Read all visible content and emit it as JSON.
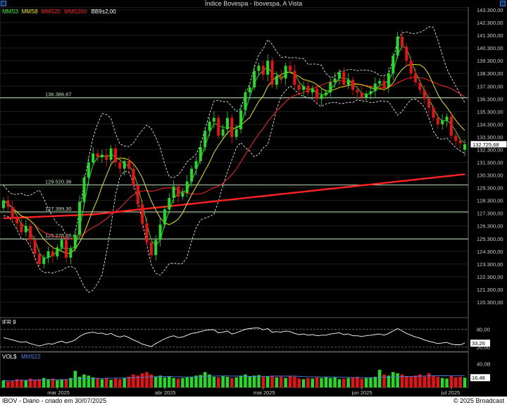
{
  "window": {
    "title": "Índice Bovespa - Ibovespa, A Vista"
  },
  "footer": {
    "left": "IBOV - Diário - criado em 30/07/2025",
    "right": "© 2025 Broadcast"
  },
  "colors": {
    "up": "#22dd22",
    "down": "#ee1111",
    "mms3": "#33ee33",
    "mms8": "#e8e800",
    "mms20": "#ff2222",
    "mms200": "#ff2222",
    "bb": "#ffffff",
    "grid": "#1e1e1e"
  },
  "chart_data": [
    {
      "type": "candlestick",
      "legend": [
        {
          "label": "MMS3",
          "color": "#33ee33"
        },
        {
          "label": "MMS8",
          "color": "#e8e800"
        },
        {
          "label": "MMS20",
          "color": "#ff2222"
        },
        {
          "label": "MMS200",
          "color": "#ff2222"
        },
        {
          "label": "BB9±2,00",
          "color": "#ffffff"
        }
      ],
      "ylim": [
        119300,
        143300
      ],
      "yticks": [
        "120.300,00",
        "121.300,00",
        "122.300,00",
        "123.300,00",
        "124.300,00",
        "125.300,00",
        "126.300,00",
        "127.300,00",
        "128.300,00",
        "129.300,00",
        "130.300,00",
        "131.300,00",
        "132.300,00",
        "133.300,00",
        "134.300,00",
        "135.300,00",
        "136.300,00",
        "137.300,00",
        "138.300,00",
        "139.300,00",
        "140.300,00",
        "141.300,00",
        "142.300,00",
        "143.300,00"
      ],
      "last_price": 132725.68,
      "last_price_label": "132.725,68",
      "hlines": [
        {
          "value": 136386.67,
          "label": "136.386,67"
        },
        {
          "value": 129520.36,
          "label": "129.520,36"
        },
        {
          "value": 127399.3,
          "label": "127.399,30"
        },
        {
          "value": 125275.65,
          "label": "125.275,65"
        }
      ],
      "months": [
        {
          "index": 12,
          "label": "mar 2025"
        },
        {
          "index": 36,
          "label": "abr 2025"
        },
        {
          "index": 58,
          "label": "mai 2025"
        },
        {
          "index": 80,
          "label": "jun 2025"
        },
        {
          "index": 100,
          "label": "jul 2025"
        }
      ],
      "closes": [
        128300,
        127800,
        127000,
        126500,
        125800,
        126300,
        125200,
        124100,
        123300,
        123800,
        124300,
        123900,
        124600,
        125200,
        123800,
        124500,
        125600,
        128200,
        130100,
        131300,
        132000,
        131700,
        131900,
        131500,
        132400,
        131300,
        130800,
        131400,
        130800,
        129500,
        128000,
        126500,
        125000,
        124000,
        125200,
        126400,
        127600,
        128500,
        129400,
        128600,
        128900,
        129800,
        130800,
        131400,
        132500,
        133800,
        134500,
        134800,
        133400,
        133900,
        134800,
        133300,
        133900,
        135400,
        136800,
        137200,
        138500,
        138900,
        138200,
        139300,
        137400,
        138100,
        137900,
        138900,
        138500,
        137400,
        137000,
        137300,
        136800,
        137100,
        136300,
        136600,
        136800,
        137600,
        137900,
        138400,
        137400,
        137800,
        137000,
        136800,
        136400,
        136700,
        136900,
        137500,
        137700,
        137200,
        138300,
        139700,
        141200,
        140400,
        139300,
        138300,
        137600,
        137000,
        136300,
        135600,
        134800,
        134300,
        134600,
        134900,
        133400,
        133000,
        132800,
        132725.68
      ],
      "opens": [
        127700,
        128300,
        127800,
        127000,
        126500,
        125800,
        126300,
        125200,
        124100,
        123300,
        123800,
        124300,
        123900,
        124600,
        125200,
        123800,
        124500,
        125600,
        128200,
        130100,
        131300,
        132000,
        131700,
        131900,
        131500,
        132400,
        131300,
        130800,
        131400,
        130800,
        129500,
        128000,
        126500,
        125000,
        124000,
        125200,
        126400,
        127600,
        128500,
        129400,
        128600,
        128900,
        129800,
        130800,
        131400,
        132500,
        133800,
        134500,
        134800,
        133400,
        133900,
        134800,
        133300,
        133900,
        135400,
        136800,
        137200,
        138500,
        138900,
        138200,
        139300,
        137400,
        138100,
        137900,
        138900,
        138500,
        137400,
        137000,
        137300,
        136800,
        137100,
        136300,
        136600,
        136800,
        137600,
        137900,
        138400,
        137400,
        137800,
        137000,
        136800,
        136400,
        136700,
        136900,
        137500,
        137700,
        137200,
        138300,
        139700,
        141200,
        140400,
        139300,
        138300,
        137600,
        137000,
        136300,
        135600,
        134800,
        134300,
        134600,
        134900,
        133400,
        133000,
        132300
      ]
    },
    {
      "type": "line",
      "title": "IFR 9",
      "ylim": [
        15,
        95
      ],
      "yticks": [
        "80,00",
        "20,00"
      ],
      "last_value_label": "33,26",
      "values": [
        52,
        48,
        44,
        40,
        36,
        38,
        32,
        28,
        24,
        28,
        32,
        30,
        36,
        40,
        34,
        38,
        44,
        56,
        64,
        68,
        70,
        66,
        67,
        62,
        66,
        58,
        54,
        58,
        52,
        44,
        38,
        30,
        26,
        22,
        32,
        40,
        48,
        54,
        58,
        52,
        54,
        60,
        66,
        68,
        72,
        76,
        78,
        78,
        68,
        70,
        74,
        64,
        68,
        74,
        80,
        82,
        84,
        84,
        78,
        82,
        70,
        72,
        70,
        74,
        72,
        66,
        62,
        64,
        60,
        62,
        58,
        60,
        60,
        64,
        66,
        68,
        62,
        64,
        58,
        58,
        56,
        58,
        60,
        62,
        64,
        60,
        66,
        74,
        82,
        74,
        66,
        60,
        54,
        50,
        44,
        40,
        36,
        32,
        34,
        36,
        30,
        28,
        28,
        33.26
      ]
    },
    {
      "type": "bar",
      "title": "VOL$",
      "legend": [
        {
          "label": "MMS22",
          "color": "#4f7fe0"
        }
      ],
      "ylim": [
        0,
        55
      ],
      "yticks": [
        "40,0B"
      ],
      "last_value_label": "16,48",
      "values": [
        12,
        10,
        11,
        14,
        13,
        12,
        15,
        13,
        14,
        16,
        14,
        15,
        12,
        13,
        14,
        16,
        28,
        18,
        22,
        20,
        17,
        16,
        14,
        15,
        13,
        15,
        14,
        16,
        18,
        22,
        20,
        24,
        26,
        22,
        18,
        20,
        17,
        18,
        16,
        15,
        16,
        17,
        18,
        20,
        21,
        26,
        22,
        18,
        17,
        19,
        18,
        16,
        17,
        20,
        22,
        18,
        20,
        21,
        18,
        19,
        20,
        17,
        18,
        16,
        19,
        18,
        15,
        14,
        16,
        15,
        17,
        16,
        18,
        16,
        17,
        14,
        15,
        16,
        17,
        18,
        15,
        16,
        17,
        18,
        30,
        22,
        20,
        26,
        24,
        22,
        19,
        18,
        20,
        22,
        18,
        24,
        20,
        18,
        16,
        15,
        19,
        17,
        18,
        16.48
      ]
    }
  ]
}
